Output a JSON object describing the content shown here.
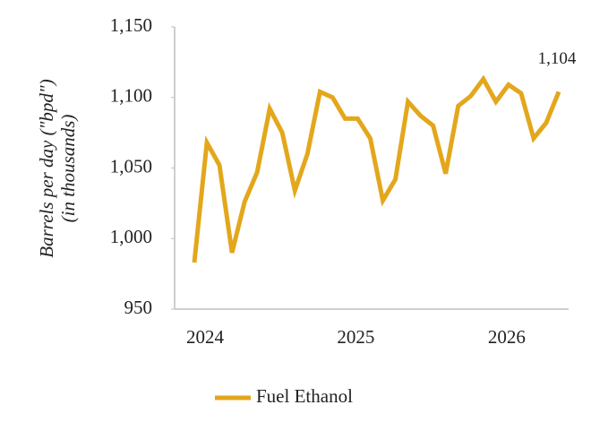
{
  "chart_data": {
    "type": "line",
    "ylabel": [
      "Barrels per day (\"bpd\")",
      "(in thousands)"
    ],
    "categories": [
      "2024",
      null,
      null,
      null,
      null,
      null,
      null,
      null,
      null,
      null,
      null,
      null,
      "2025",
      null,
      null,
      null,
      null,
      null,
      null,
      null,
      null,
      null,
      null,
      null,
      "2026",
      null,
      null,
      null,
      null,
      null
    ],
    "series": [
      {
        "name": "Fuel Ethanol",
        "color": "#e3a71c",
        "values": [
          983,
          1068,
          1052,
          990,
          1026,
          1047,
          1092,
          1075,
          1034,
          1060,
          1104,
          1100,
          1085,
          1085,
          1071,
          1027,
          1042,
          1097,
          1087,
          1080,
          1046,
          1094,
          1101,
          1113,
          1097,
          1109,
          1103,
          1071,
          1082,
          1104
        ],
        "value_labels": [
          null,
          null,
          null,
          null,
          null,
          null,
          null,
          null,
          null,
          null,
          null,
          null,
          null,
          null,
          null,
          null,
          null,
          null,
          null,
          null,
          null,
          null,
          null,
          null,
          null,
          null,
          null,
          null,
          null,
          "1,104"
        ]
      }
    ],
    "ylim": [
      950,
      1150
    ],
    "yticks": [
      950,
      {
        "value": 1000,
        "label": "1,000"
      },
      {
        "value": 1050,
        "label": "1,050"
      },
      {
        "value": 1100,
        "label": "1,100"
      },
      {
        "value": 1150,
        "label": "1,150"
      }
    ],
    "grid": false,
    "legend": "bottom"
  }
}
